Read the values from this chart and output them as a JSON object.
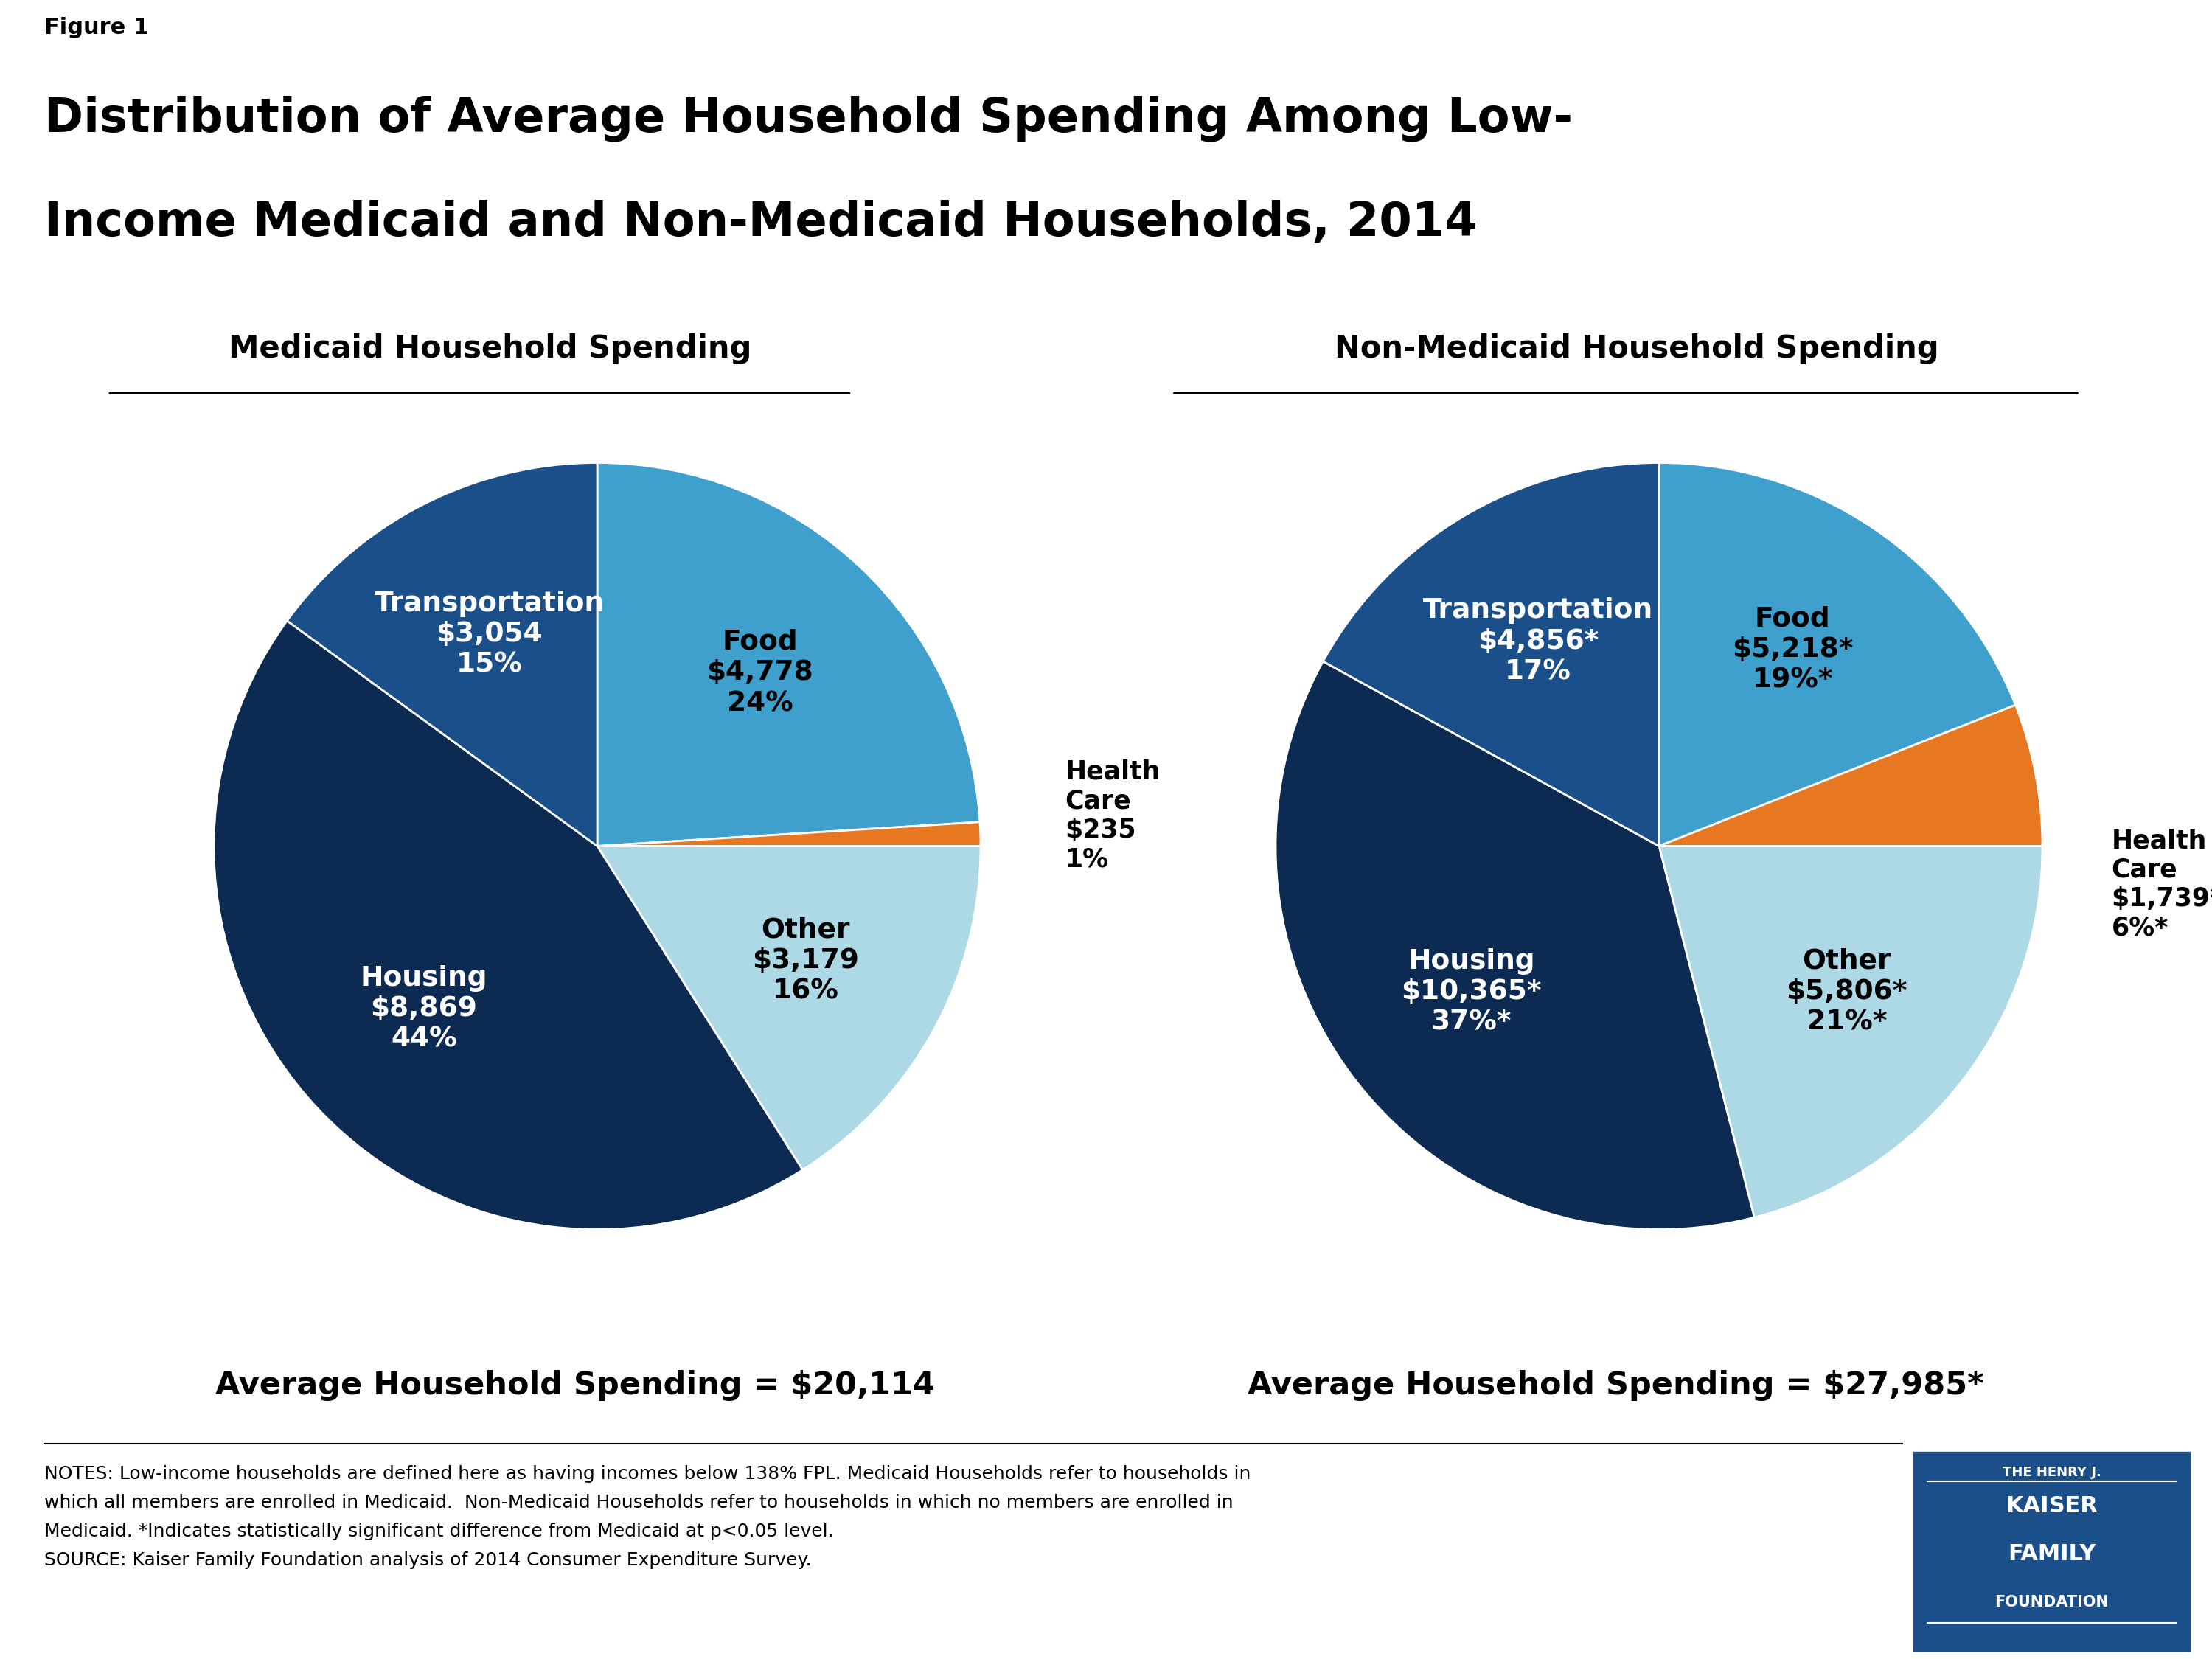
{
  "figure_label": "Figure 1",
  "title_line1": "Distribution of Average Household Spending Among Low-",
  "title_line2": "Income Medicaid and Non-Medicaid Households, 2014",
  "left_subtitle": "Medicaid Household Spending",
  "right_subtitle": "Non-Medicaid Household Spending",
  "left_avg": "Average Household Spending = $20,114",
  "right_avg": "Average Household Spending = $27,985*",
  "medicaid_slices": [
    24,
    1,
    16,
    44,
    15
  ],
  "medicaid_colors": [
    "#3FA0CD",
    "#E87722",
    "#ADD8E6",
    "#0D2B52",
    "#1B4F8A"
  ],
  "nonmedicaid_slices": [
    19,
    6,
    21,
    37,
    17
  ],
  "nonmedicaid_colors": [
    "#3FA0CD",
    "#E87722",
    "#ADD8E6",
    "#0D2B52",
    "#1B4F8A"
  ],
  "notes_line1": "NOTES: Low-income households are defined here as having incomes below 138% FPL. Medicaid Households refer to households in",
  "notes_line2": "which all members are enrolled in Medicaid.  Non-Medicaid Households refer to households in which no members are enrolled in",
  "notes_line3": "Medicaid. *Indicates statistically significant difference from Medicaid at p<0.05 level.",
  "notes_line4": "SOURCE: Kaiser Family Foundation analysis of 2014 Consumer Expenditure Survey.",
  "kaiser_box_color": "#1B4F8A",
  "bg_color": "#FFFFFF",
  "startangle": 90
}
